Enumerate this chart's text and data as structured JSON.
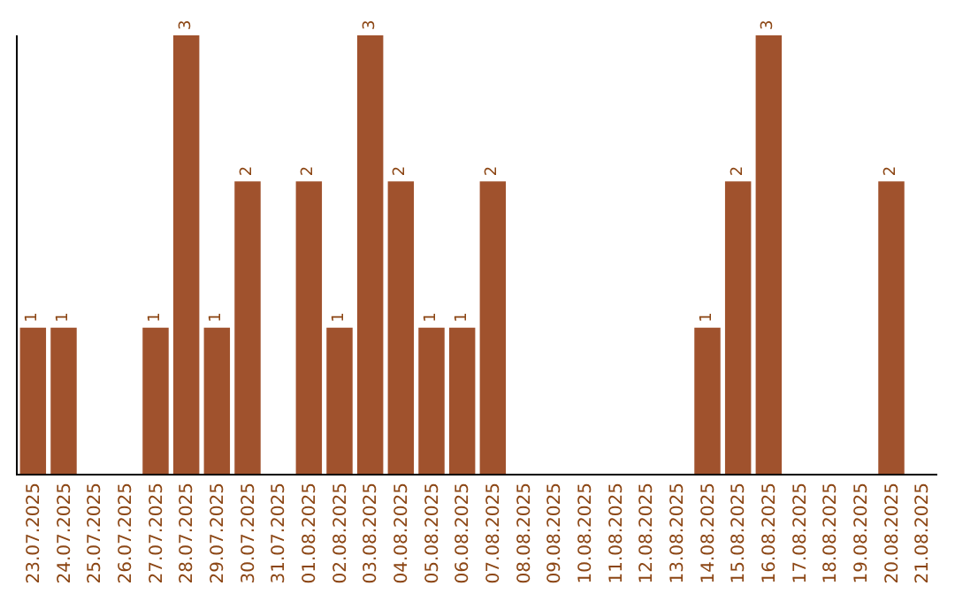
{
  "chart_data": {
    "type": "bar",
    "categories": [
      "23.07.2025",
      "24.07.2025",
      "25.07.2025",
      "26.07.2025",
      "27.07.2025",
      "28.07.2025",
      "29.07.2025",
      "30.07.2025",
      "31.07.2025",
      "01.08.2025",
      "02.08.2025",
      "03.08.2025",
      "04.08.2025",
      "05.08.2025",
      "06.08.2025",
      "07.08.2025",
      "08.08.2025",
      "09.08.2025",
      "10.08.2025",
      "11.08.2025",
      "12.08.2025",
      "13.08.2025",
      "14.08.2025",
      "15.08.2025",
      "16.08.2025",
      "17.08.2025",
      "18.08.2025",
      "19.08.2025",
      "20.08.2025",
      "21.08.2025"
    ],
    "values": [
      1,
      1,
      0,
      0,
      1,
      3,
      1,
      2,
      0,
      2,
      1,
      3,
      2,
      1,
      1,
      2,
      0,
      0,
      0,
      0,
      0,
      0,
      1,
      2,
      3,
      0,
      0,
      0,
      2,
      0
    ],
    "value_labels": [
      "1",
      "1",
      null,
      null,
      "1",
      "3",
      "1",
      "2",
      null,
      "2",
      "1",
      "3",
      "2",
      "1",
      "1",
      "2",
      null,
      null,
      null,
      null,
      null,
      null,
      "1",
      "2",
      "3",
      null,
      null,
      null,
      "2",
      null
    ],
    "color": "#a0522d",
    "ylim": [
      0,
      3
    ],
    "tick_labels": "x"
  }
}
